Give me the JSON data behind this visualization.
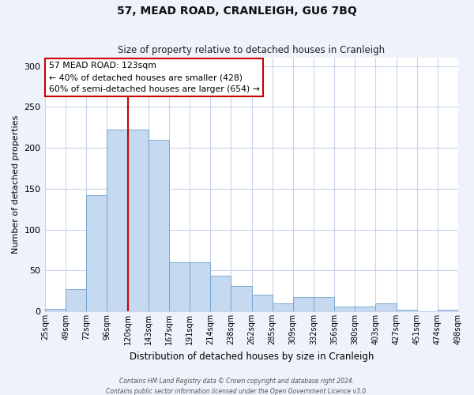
{
  "title": "57, MEAD ROAD, CRANLEIGH, GU6 7BQ",
  "subtitle": "Size of property relative to detached houses in Cranleigh",
  "xlabel": "Distribution of detached houses by size in Cranleigh",
  "ylabel": "Number of detached properties",
  "bar_heights": [
    3,
    27,
    142,
    222,
    222,
    210,
    60,
    60,
    44,
    31,
    20,
    10,
    17,
    17,
    6,
    6,
    10,
    2,
    0,
    2
  ],
  "tick_labels": [
    "25sqm",
    "49sqm",
    "72sqm",
    "96sqm",
    "120sqm",
    "143sqm",
    "167sqm",
    "191sqm",
    "214sqm",
    "238sqm",
    "262sqm",
    "285sqm",
    "309sqm",
    "332sqm",
    "356sqm",
    "380sqm",
    "403sqm",
    "427sqm",
    "451sqm",
    "474sqm",
    "498sqm"
  ],
  "bar_color": "#c5d9f0",
  "bar_edge_color": "#6fa0cc",
  "vline_color": "#cc0000",
  "ylim": [
    0,
    310
  ],
  "yticks": [
    0,
    50,
    100,
    150,
    200,
    250,
    300
  ],
  "annotation_title": "57 MEAD ROAD: 123sqm",
  "annotation_line1": "← 40% of detached houses are smaller (428)",
  "annotation_line2": "60% of semi-detached houses are larger (654) →",
  "annotation_box_color": "#ffffff",
  "annotation_box_edge": "#cc0000",
  "footer1": "Contains HM Land Registry data © Crown copyright and database right 2024.",
  "footer2": "Contains public sector information licensed under the Open Government Licence v3.0.",
  "bg_color": "#eef2fa",
  "plot_bg_color": "#ffffff",
  "grid_color": "#c8d4e8"
}
